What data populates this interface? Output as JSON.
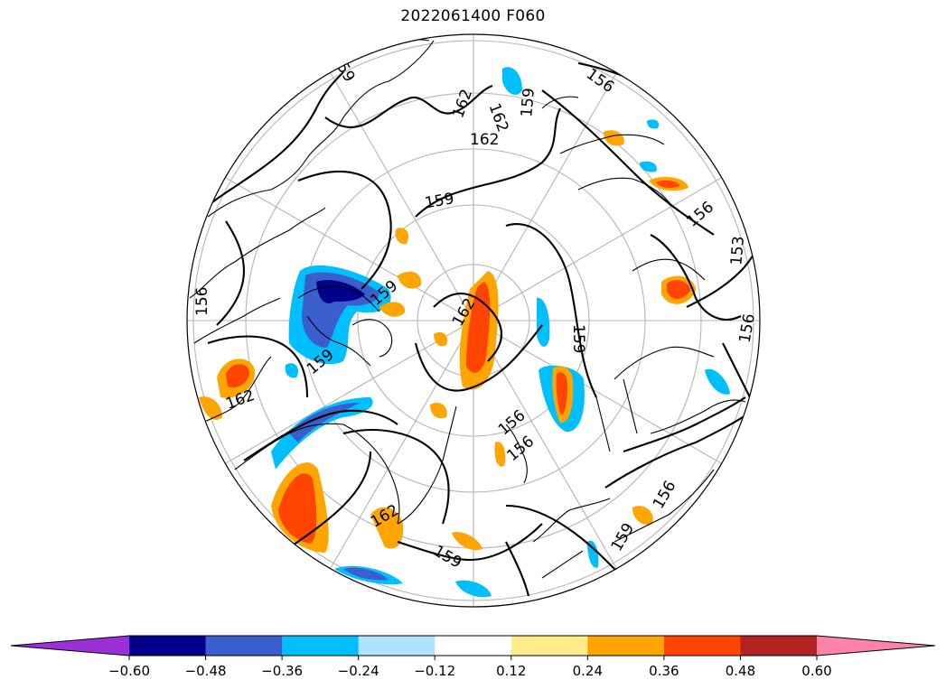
{
  "title": "2022061400 F060",
  "contour_labels": [
    "159",
    "162",
    "162",
    "159",
    "156",
    "159",
    "156",
    "153",
    "156",
    "159",
    "156",
    "156",
    "159",
    "159",
    "156",
    "162",
    "162",
    "159",
    "162",
    "159",
    "162",
    "156"
  ],
  "colorbar": {
    "ticks": [
      "−0.60",
      "−0.48",
      "−0.36",
      "−0.24",
      "−0.12",
      "0.12",
      "0.24",
      "0.36",
      "0.48",
      "0.60"
    ],
    "colors": [
      "#9b30d9",
      "#00008b",
      "#3a5fcd",
      "#00bfff",
      "#b0e2ff",
      "#ffffff",
      "#ffec8b",
      "#ffa500",
      "#ff4500",
      "#b22222",
      "#ff82ab"
    ]
  },
  "fill_colors": {
    "light_blue": "#b0e2ff",
    "sky_blue": "#00bfff",
    "royal_blue": "#3a5fcd",
    "navy": "#00008b",
    "light_yellow": "#ffec8b",
    "orange": "#ffa500",
    "red_orange": "#ff4500"
  }
}
